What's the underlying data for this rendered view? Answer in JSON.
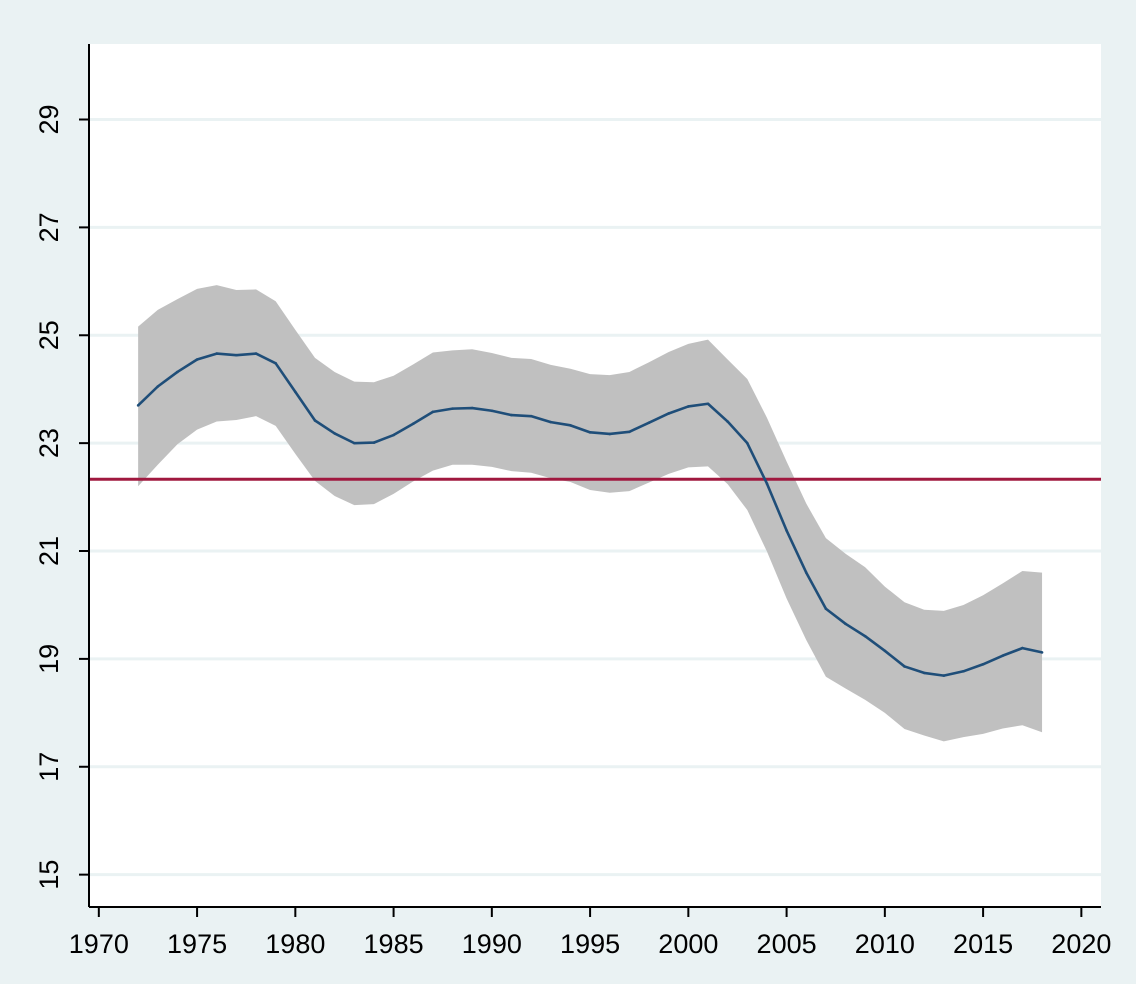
{
  "chart_data": {
    "type": "line",
    "title": "",
    "xlabel": "",
    "ylabel": "",
    "xlim": [
      1969.5,
      2021
    ],
    "ylim": [
      14.4,
      30.4
    ],
    "x_ticks": [
      1970,
      1975,
      1980,
      1985,
      1990,
      1995,
      2000,
      2005,
      2010,
      2015,
      2020
    ],
    "y_ticks": [
      15,
      17,
      19,
      21,
      23,
      25,
      27,
      29
    ],
    "grid": "horizontal",
    "reference_line": {
      "y": 22.33,
      "color": "#a0183f"
    },
    "colors": {
      "line": "#1f4e79",
      "band": "#c0c0c0",
      "plot_background": "#ffffff",
      "outer_background": "#eaf2f3"
    },
    "series": [
      {
        "x": [
          1972,
          1973,
          1974,
          1975,
          1976,
          1977,
          1978,
          1979,
          1980,
          1981,
          1982,
          1983,
          1984,
          1985,
          1986,
          1987,
          1988,
          1989,
          1990,
          1991,
          1992,
          1993,
          1994,
          1995,
          1996,
          1997,
          1998,
          1999,
          2000,
          2001,
          2002,
          2003,
          2004,
          2005,
          2006,
          2007,
          2008,
          2009,
          2010,
          2011,
          2012,
          2013,
          2014,
          2015,
          2016,
          2017,
          2018
        ],
        "y": [
          23.7,
          24.05,
          24.32,
          24.55,
          24.66,
          24.63,
          24.66,
          24.48,
          23.95,
          23.42,
          23.18,
          23.0,
          23.01,
          23.15,
          23.36,
          23.58,
          23.64,
          23.65,
          23.6,
          23.52,
          23.5,
          23.39,
          23.33,
          23.2,
          23.17,
          23.21,
          23.38,
          23.55,
          23.68,
          23.73,
          23.4,
          23.0,
          22.25,
          21.38,
          20.6,
          19.93,
          19.65,
          19.42,
          19.15,
          18.86,
          18.74,
          18.69,
          18.77,
          18.9,
          19.06,
          19.2,
          19.12
        ],
        "lower": [
          22.2,
          22.6,
          22.98,
          23.25,
          23.4,
          23.43,
          23.5,
          23.32,
          22.8,
          22.3,
          22.02,
          21.85,
          21.87,
          22.06,
          22.29,
          22.49,
          22.6,
          22.6,
          22.56,
          22.48,
          22.45,
          22.35,
          22.28,
          22.13,
          22.08,
          22.11,
          22.27,
          22.43,
          22.55,
          22.57,
          22.24,
          21.76,
          20.99,
          20.12,
          19.35,
          18.67,
          18.45,
          18.24,
          18.0,
          17.7,
          17.58,
          17.47,
          17.55,
          17.61,
          17.71,
          17.77,
          17.64
        ],
        "upper": [
          25.16,
          25.47,
          25.67,
          25.86,
          25.93,
          25.84,
          25.85,
          25.63,
          25.1,
          24.58,
          24.32,
          24.14,
          24.13,
          24.25,
          24.46,
          24.68,
          24.72,
          24.74,
          24.67,
          24.58,
          24.56,
          24.45,
          24.38,
          24.28,
          24.26,
          24.32,
          24.5,
          24.69,
          24.84,
          24.92,
          24.55,
          24.19,
          23.47,
          22.66,
          21.88,
          21.24,
          20.95,
          20.7,
          20.34,
          20.05,
          19.91,
          19.89,
          20.0,
          20.18,
          20.4,
          20.63,
          20.6
        ]
      }
    ]
  }
}
